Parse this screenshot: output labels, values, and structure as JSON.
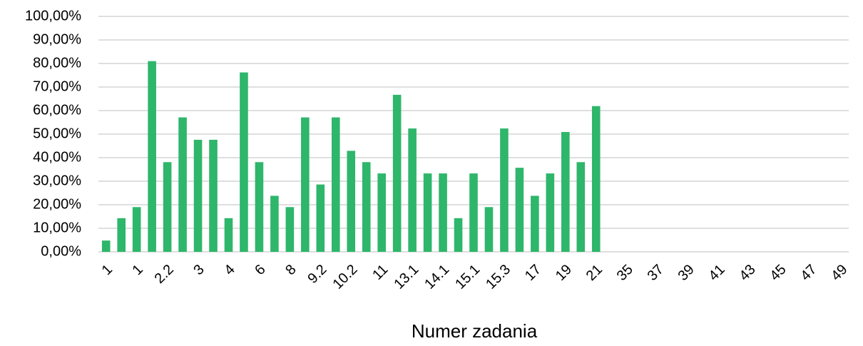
{
  "chart_data": {
    "type": "bar",
    "x_label": "Numer zadania",
    "categories": [
      "1",
      null,
      "1",
      null,
      "2.2",
      null,
      "3",
      null,
      "4",
      null,
      "6",
      null,
      "8",
      null,
      "9.2",
      null,
      "10.2",
      null,
      "11",
      null,
      "13.1",
      null,
      "14.1",
      null,
      "15.1",
      null,
      "15.3",
      null,
      "17",
      null,
      "19",
      null,
      "21",
      null,
      "35",
      null,
      "37",
      null,
      "39",
      null,
      "41",
      null,
      "43",
      null,
      "45",
      null,
      "47",
      null,
      "49"
    ],
    "values": [
      4.8,
      14.3,
      19.0,
      81.0,
      38.1,
      57.1,
      47.6,
      47.6,
      14.3,
      76.2,
      38.1,
      23.8,
      19.0,
      57.1,
      28.6,
      57.1,
      42.9,
      38.1,
      33.3,
      66.7,
      52.4,
      33.3,
      33.3,
      14.3,
      33.3,
      19.0,
      52.4,
      35.7,
      23.8,
      33.3,
      50.9,
      38.1,
      61.9,
      null,
      null,
      null,
      null,
      null,
      null,
      null,
      null,
      null,
      null,
      null,
      null,
      null,
      null,
      null,
      null
    ],
    "color": "#2eb66b",
    "ylim": [
      0,
      100
    ],
    "yticks": [
      {
        "value": 0,
        "label": "0,00%"
      },
      {
        "value": 10,
        "label": "10,00%"
      },
      {
        "value": 20,
        "label": "20,00%"
      },
      {
        "value": 30,
        "label": "30,00%"
      },
      {
        "value": 40,
        "label": "40,00%"
      },
      {
        "value": 50,
        "label": "50,00%"
      },
      {
        "value": 60,
        "label": "60,00%"
      },
      {
        "value": 70,
        "label": "70,00%"
      },
      {
        "value": 80,
        "label": "80,00%"
      },
      {
        "value": 90,
        "label": "90,00%"
      },
      {
        "value": 100,
        "label": "100,00%"
      }
    ],
    "grid": true
  }
}
